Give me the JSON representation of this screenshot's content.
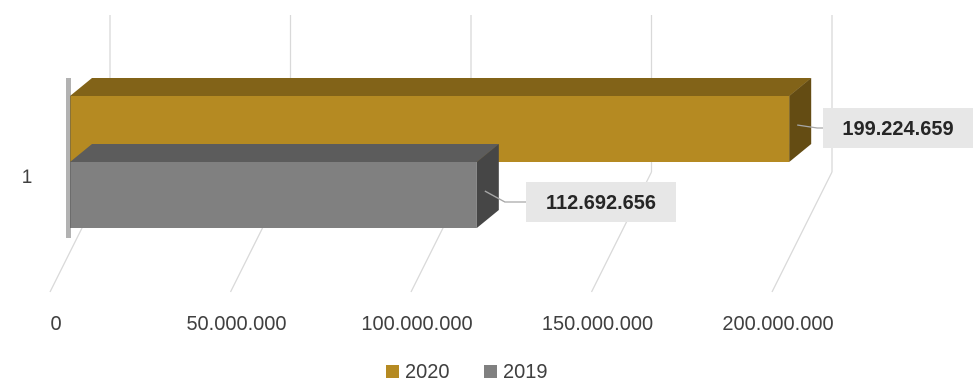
{
  "chart_data": {
    "type": "bar",
    "orientation": "horizontal",
    "style": "3d",
    "categories": [
      "1"
    ],
    "series": [
      {
        "name": "2020",
        "values": [
          199224659
        ],
        "color": "#b58a22",
        "label": "199.224.659"
      },
      {
        "name": "2019",
        "values": [
          112692656
        ],
        "color": "#808080",
        "label": "112.692.656"
      }
    ],
    "xlim": [
      0,
      200000000
    ],
    "xticks": [
      0,
      50000000,
      100000000,
      150000000,
      200000000
    ],
    "xtick_labels": [
      "0",
      "50.000.000",
      "100.000.000",
      "150.000.000",
      "200.000.000"
    ],
    "grid": true,
    "legend": "bottom"
  }
}
